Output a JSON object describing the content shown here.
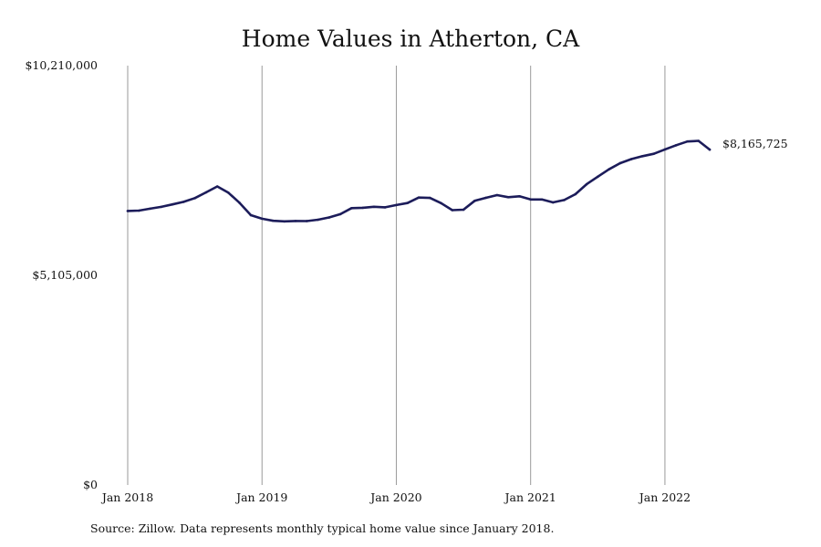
{
  "chart_data": {
    "type": "line",
    "title": "Home Values in Atherton, CA",
    "xlabel": "",
    "ylabel": "",
    "ylim": [
      0,
      10210000
    ],
    "y_ticks": [
      {
        "value": 0,
        "label": "$0"
      },
      {
        "value": 5105000,
        "label": "$5,105,000"
      },
      {
        "value": 10210000,
        "label": "$10,210,000"
      }
    ],
    "x_ticks": [
      {
        "value": 0,
        "label": "Jan 2018"
      },
      {
        "value": 12,
        "label": "Jan 2019"
      },
      {
        "value": 24,
        "label": "Jan 2020"
      },
      {
        "value": 36,
        "label": "Jan 2021"
      },
      {
        "value": 48,
        "label": "Jan 2022"
      }
    ],
    "x_range": [
      0,
      52
    ],
    "vertical_gridlines": true,
    "line_color": "#1c1c5a",
    "series": [
      {
        "name": "",
        "end_label": "$8,165,725",
        "values": [
          6672000,
          6680000,
          6728000,
          6772000,
          6832000,
          6894000,
          6984000,
          7124000,
          7268000,
          7116000,
          6868000,
          6570000,
          6484000,
          6432000,
          6418000,
          6428000,
          6426000,
          6458000,
          6514000,
          6594000,
          6740000,
          6750000,
          6774000,
          6760000,
          6816000,
          6866000,
          6998000,
          6990000,
          6862000,
          6692000,
          6704000,
          6918000,
          6992000,
          7058000,
          7008000,
          7030000,
          6952000,
          6952000,
          6880000,
          6938000,
          7080000,
          7322000,
          7506000,
          7686000,
          7836000,
          7934000,
          8006000,
          8064000,
          8170000,
          8272000,
          8364000,
          8378000,
          8165725
        ]
      }
    ]
  },
  "footer": {
    "source_note": "Source: Zillow. Data represents monthly typical home value since January 2018."
  }
}
